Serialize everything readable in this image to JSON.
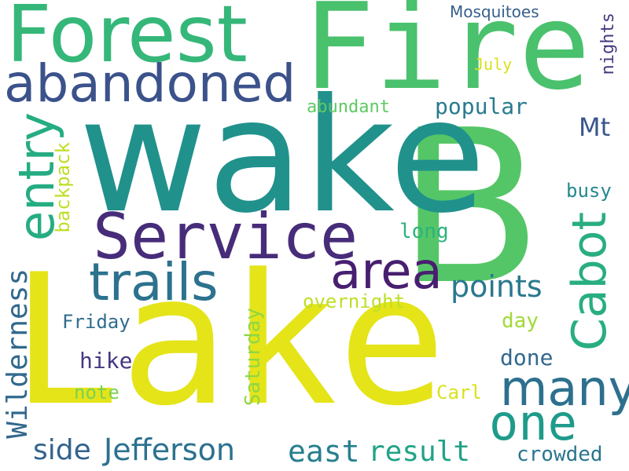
{
  "words": [
    {
      "text": "Lake",
      "color": "#e4e419"
    },
    {
      "text": "B",
      "color": "#55c667"
    },
    {
      "text": "wake",
      "color": "#21918c"
    },
    {
      "text": "Fire",
      "color": "#4ac16d"
    },
    {
      "text": "Forest",
      "color": "#35b779"
    },
    {
      "text": "Service",
      "color": "#472c7a"
    },
    {
      "text": "abandoned",
      "color": "#3b528b"
    },
    {
      "text": "trails",
      "color": "#2c728e"
    },
    {
      "text": "area",
      "color": "#481f70"
    },
    {
      "text": "entry",
      "color": "#25ac82"
    },
    {
      "text": "Cabot",
      "color": "#28ae80"
    },
    {
      "text": "many",
      "color": "#2d708e"
    },
    {
      "text": "one",
      "color": "#1e9b8a"
    },
    {
      "text": "points",
      "color": "#2a788e"
    },
    {
      "text": "Jefferson",
      "color": "#2c718e"
    },
    {
      "text": "Wilderness",
      "color": "#31688e"
    },
    {
      "text": "result",
      "color": "#20a386"
    },
    {
      "text": "east",
      "color": "#277f8e"
    },
    {
      "text": "side",
      "color": "#33638d"
    },
    {
      "text": "Mt",
      "color": "#39568c"
    },
    {
      "text": "popular",
      "color": "#297b8e"
    },
    {
      "text": "crowded",
      "color": "#2a768e"
    },
    {
      "text": "Saturday",
      "color": "#8fd744"
    },
    {
      "text": "hike",
      "color": "#443983"
    },
    {
      "text": "done",
      "color": "#31688e"
    },
    {
      "text": "day",
      "color": "#a0da39"
    },
    {
      "text": "note",
      "color": "#7ad151"
    },
    {
      "text": "Carl",
      "color": "#d8e219"
    },
    {
      "text": "Friday",
      "color": "#2f6c8e"
    },
    {
      "text": "overnight",
      "color": "#bddf26"
    },
    {
      "text": "long",
      "color": "#2db27d"
    },
    {
      "text": "backpack",
      "color": "#bddf26"
    },
    {
      "text": "busy",
      "color": "#23888e"
    },
    {
      "text": "abundant",
      "color": "#5ec962"
    },
    {
      "text": "nights",
      "color": "#453781"
    },
    {
      "text": "July",
      "color": "#d8e219"
    },
    {
      "text": "Mosquitoes",
      "color": "#355f8d"
    }
  ]
}
